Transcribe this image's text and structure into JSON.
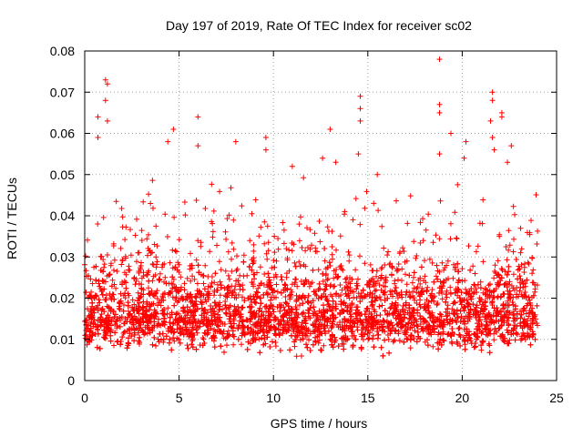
{
  "chart_data": {
    "type": "scatter",
    "title": "Day 197 of 2019, Rate Of TEC Index for receiver sc02",
    "xlabel": "GPS time / hours",
    "ylabel": "ROTI / TECUs",
    "xlim": [
      0,
      25
    ],
    "ylim": [
      0,
      0.08
    ],
    "x_ticks": [
      "0",
      "5",
      "10",
      "15",
      "20",
      "25"
    ],
    "y_ticks": [
      "0",
      "0.01",
      "0.02",
      "0.03",
      "0.04",
      "0.05",
      "0.06",
      "0.07",
      "0.08"
    ],
    "grid": true,
    "marker": "+",
    "marker_color": "#ff0000",
    "series": [
      {
        "name": "ROTI",
        "density_note": "several thousand points spanning 0-24 h; bulk 0.005-0.03 TECU/min",
        "peak_points": [
          {
            "x": 1.1,
            "y": 0.073
          },
          {
            "x": 1.2,
            "y": 0.072
          },
          {
            "x": 1.1,
            "y": 0.068
          },
          {
            "x": 0.7,
            "y": 0.064
          },
          {
            "x": 1.2,
            "y": 0.063
          },
          {
            "x": 0.7,
            "y": 0.059
          },
          {
            "x": 4.7,
            "y": 0.061
          },
          {
            "x": 4.4,
            "y": 0.058
          },
          {
            "x": 6.0,
            "y": 0.064
          },
          {
            "x": 6.0,
            "y": 0.057
          },
          {
            "x": 8.0,
            "y": 0.058
          },
          {
            "x": 9.6,
            "y": 0.059
          },
          {
            "x": 9.6,
            "y": 0.056
          },
          {
            "x": 11.0,
            "y": 0.052
          },
          {
            "x": 12.6,
            "y": 0.054
          },
          {
            "x": 13.0,
            "y": 0.061
          },
          {
            "x": 13.3,
            "y": 0.053
          },
          {
            "x": 14.6,
            "y": 0.069
          },
          {
            "x": 14.6,
            "y": 0.066
          },
          {
            "x": 14.6,
            "y": 0.063
          },
          {
            "x": 14.5,
            "y": 0.055
          },
          {
            "x": 15.5,
            "y": 0.05
          },
          {
            "x": 18.8,
            "y": 0.078
          },
          {
            "x": 18.8,
            "y": 0.067
          },
          {
            "x": 18.8,
            "y": 0.065
          },
          {
            "x": 19.4,
            "y": 0.06
          },
          {
            "x": 18.8,
            "y": 0.055
          },
          {
            "x": 20.2,
            "y": 0.058
          },
          {
            "x": 20.1,
            "y": 0.054
          },
          {
            "x": 21.6,
            "y": 0.07
          },
          {
            "x": 21.6,
            "y": 0.068
          },
          {
            "x": 22.1,
            "y": 0.065
          },
          {
            "x": 22.1,
            "y": 0.064
          },
          {
            "x": 21.5,
            "y": 0.063
          },
          {
            "x": 21.6,
            "y": 0.059
          },
          {
            "x": 21.7,
            "y": 0.056
          },
          {
            "x": 22.6,
            "y": 0.057
          },
          {
            "x": 22.4,
            "y": 0.053
          }
        ]
      }
    ]
  }
}
